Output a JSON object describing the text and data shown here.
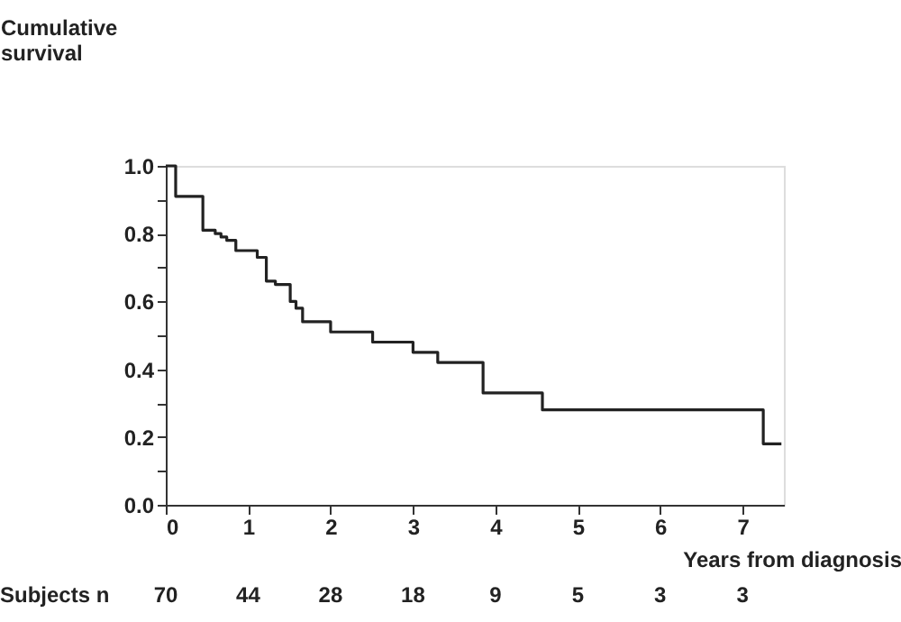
{
  "chart_data": {
    "type": "step",
    "ylabel": "Cumulative survival",
    "xlabel": "Years from diagnosis",
    "x": [
      0,
      0.12,
      0.45,
      0.6,
      0.67,
      0.74,
      0.85,
      1.11,
      1.22,
      1.33,
      1.51,
      1.58,
      1.66,
      2.0,
      2.51,
      3.0,
      3.3,
      3.85,
      4.57,
      7.25,
      7.47
    ],
    "series": [
      {
        "color": "#222222",
        "values": [
          1.0,
          0.91,
          0.81,
          0.8,
          0.79,
          0.78,
          0.75,
          0.73,
          0.66,
          0.65,
          0.6,
          0.58,
          0.54,
          0.51,
          0.48,
          0.45,
          0.42,
          0.33,
          0.28,
          0.18,
          0.18
        ]
      }
    ],
    "xlim": [
      0,
      7.5
    ],
    "xticks": [
      0,
      1,
      2,
      3,
      4,
      5,
      6,
      7
    ],
    "ylim": [
      0,
      1.0
    ],
    "yticks": [
      {
        "value": 0,
        "label": "0.0"
      },
      {
        "value": 0.1,
        "label": null
      },
      {
        "value": 0.2,
        "label": "0.2"
      },
      {
        "value": 0.3,
        "label": null
      },
      {
        "value": 0.4,
        "label": "0.4"
      },
      {
        "value": 0.5,
        "label": null
      },
      {
        "value": 0.6,
        "label": "0.6"
      },
      {
        "value": 0.7,
        "label": null
      },
      {
        "value": 0.8,
        "label": "0.8"
      },
      {
        "value": 0.9,
        "label": null
      },
      {
        "value": 1.0,
        "label": "1.0"
      }
    ],
    "grid": false,
    "marker": "none",
    "line_style": "solid",
    "annotations": [
      "Subjects n",
      "70",
      "44",
      "28",
      "18",
      "9",
      "5",
      "3",
      "3"
    ]
  }
}
